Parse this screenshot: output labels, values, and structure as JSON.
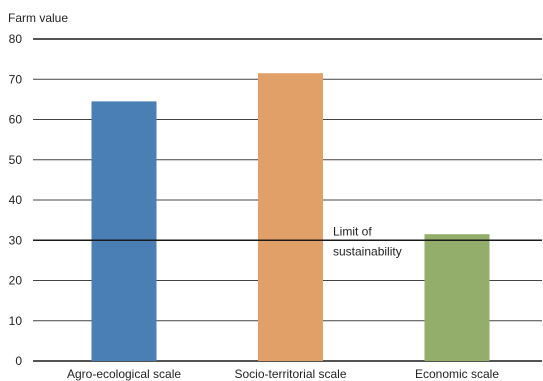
{
  "chart_data": {
    "type": "bar",
    "title": "",
    "ylabel": "Farm value",
    "xlabel": "",
    "categories": [
      "Agro-ecological scale",
      "Socio-territorial scale",
      "Economic scale"
    ],
    "values": [
      64.5,
      71.5,
      31.5
    ],
    "colors": [
      "#4a7fb5",
      "#e1a068",
      "#93ad6b"
    ],
    "ylim": [
      0,
      80
    ],
    "yticks": [
      0,
      10,
      20,
      30,
      40,
      50,
      60,
      70,
      80
    ],
    "grid": true,
    "reference_line": {
      "value": 30,
      "label_lines": [
        "Limit of",
        "sustainability"
      ]
    }
  }
}
